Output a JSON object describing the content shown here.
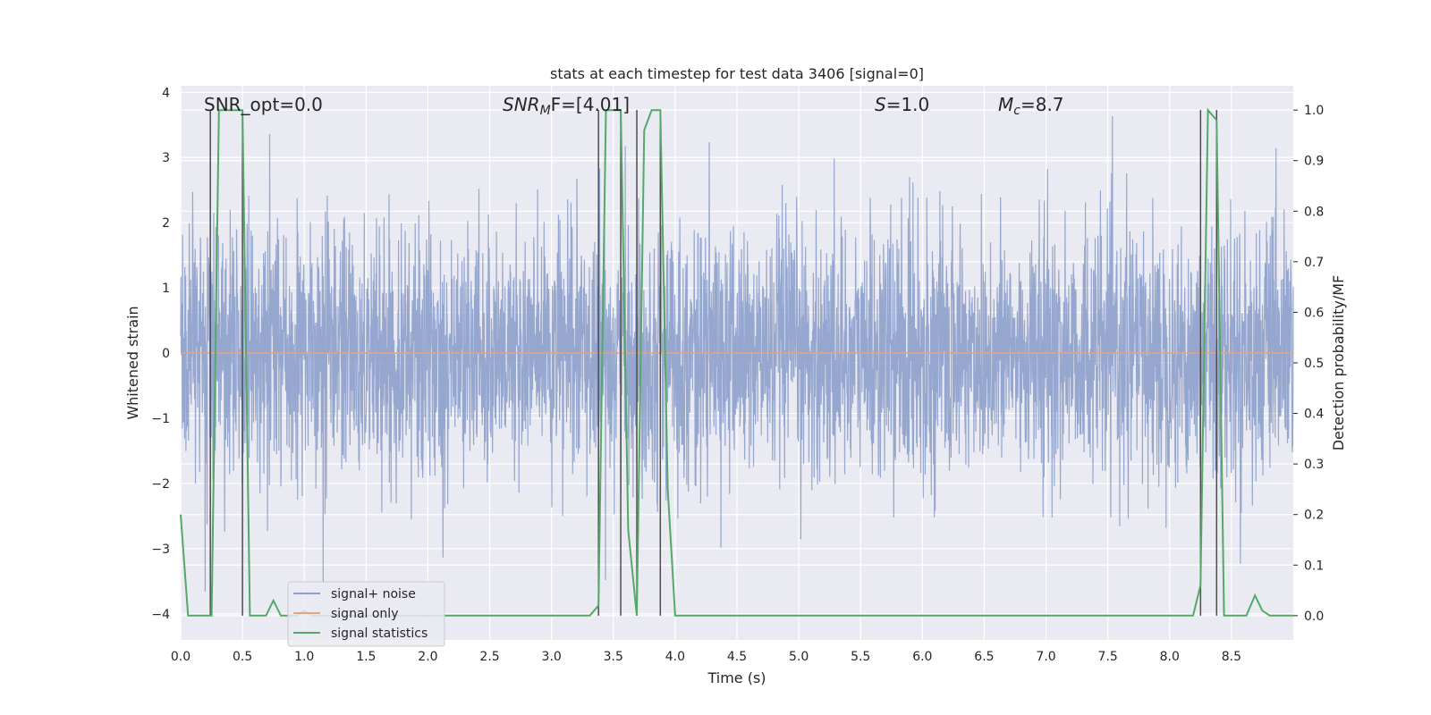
{
  "chart_data": {
    "type": "line",
    "title": "stats at each timestep for test data 3406 [signal=0]",
    "xlabel": "Time (s)",
    "ylabel": "Whitened strain",
    "ylabel_right": "Detection probability/MF",
    "xlim": [
      0.0,
      9.0
    ],
    "ylim": [
      -4.4,
      4.1
    ],
    "ylim_right": [
      -0.048,
      1.048
    ],
    "xticks": [
      "0.0",
      "0.5",
      "1.0",
      "1.5",
      "2.0",
      "2.5",
      "3.0",
      "3.5",
      "4.0",
      "4.5",
      "5.0",
      "5.5",
      "6.0",
      "6.5",
      "7.0",
      "7.5",
      "8.0",
      "8.5"
    ],
    "yticks": [
      "4",
      "3",
      "2",
      "1",
      "0",
      "−1",
      "−2",
      "−3",
      "−4"
    ],
    "yticks_right": [
      "1.0",
      "0.9",
      "0.8",
      "0.7",
      "0.6",
      "0.5",
      "0.4",
      "0.3",
      "0.2",
      "0.1",
      "0.0"
    ],
    "grid": true,
    "legend_position": "lower-left",
    "annotations": {
      "snr_opt": "SNR_opt=0.0",
      "snr_mf_prefix": "SNR",
      "snr_mf_sub": "M",
      "snr_mf_suffix": "F=[4.01]",
      "s_prefix": "S",
      "s_suffix": "=1.0",
      "mc_prefix": "M",
      "mc_sub": "c",
      "mc_suffix": "=8.7"
    },
    "series": [
      {
        "name": "signal+ noise",
        "color": "#8da0cb",
        "kind": "noise",
        "approx_std": 0.95,
        "approx_max": 3.7,
        "approx_min": -3.9
      },
      {
        "name": "signal only",
        "color": "#e5a47a",
        "kind": "line",
        "x": [
          0.0,
          9.0
        ],
        "y": [
          0.0,
          0.0
        ]
      },
      {
        "name": "signal statistics",
        "color": "#55a868",
        "kind": "line",
        "axis": "right",
        "x": [
          0.0,
          0.06,
          0.12,
          0.19,
          0.25,
          0.31,
          0.38,
          0.44,
          0.5,
          0.56,
          0.62,
          0.69,
          0.75,
          0.81,
          0.88,
          0.94,
          1.0,
          1.06,
          1.12,
          3.31,
          3.38,
          3.44,
          3.5,
          3.56,
          3.62,
          3.69,
          3.75,
          3.81,
          3.88,
          3.94,
          4.0,
          4.06,
          4.19,
          4.25,
          8.19,
          8.25,
          8.31,
          8.38,
          8.44,
          8.5,
          8.56,
          8.62,
          8.69,
          8.75,
          8.81,
          8.88,
          9.0
        ],
        "y": [
          0.2,
          0.0,
          0.0,
          0.0,
          0.0,
          1.0,
          1.0,
          1.0,
          1.0,
          0.0,
          0.0,
          0.0,
          0.03,
          0.0,
          0.0,
          0.0,
          0.01,
          0.0,
          0.0,
          0.0,
          0.02,
          1.0,
          1.0,
          1.0,
          0.17,
          0.0,
          0.96,
          1.0,
          1.0,
          0.25,
          0.0,
          0.0,
          0.0,
          0.0,
          0.0,
          0.06,
          1.0,
          0.98,
          0.0,
          0.0,
          0.0,
          0.0,
          0.04,
          0.01,
          0.0,
          0.0,
          0.0
        ]
      }
    ],
    "vertical_markers_x": [
      0.24,
      0.5,
      3.38,
      3.56,
      3.69,
      3.88,
      8.25,
      8.38
    ],
    "vertical_marker_color": "#4d4d4d"
  }
}
